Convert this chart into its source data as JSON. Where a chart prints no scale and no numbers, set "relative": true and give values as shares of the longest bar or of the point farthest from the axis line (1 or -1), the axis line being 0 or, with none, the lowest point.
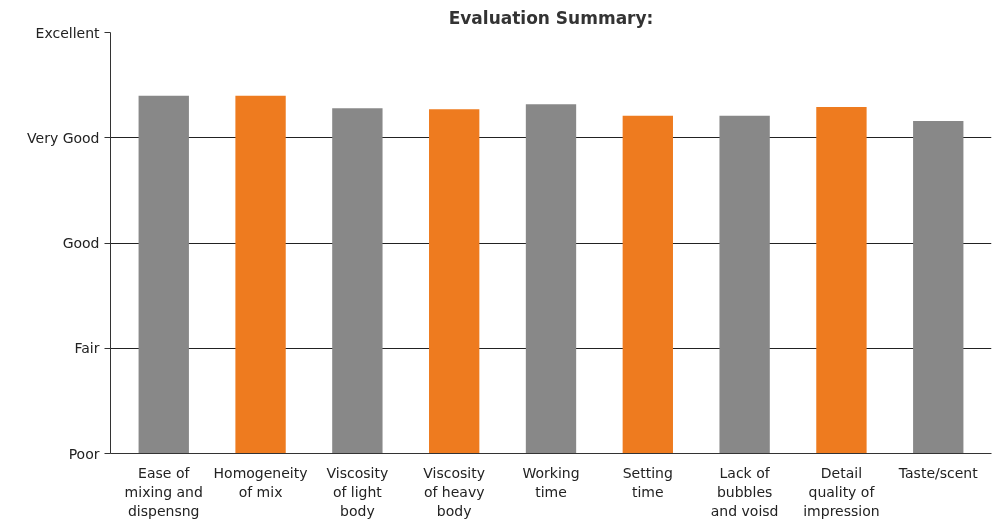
{
  "chart_data": {
    "type": "bar",
    "title": "Evaluation Summary:",
    "categories": [
      "Ease of mixing and dispensng",
      "Homogeneity of mix",
      "Viscosity of light body",
      "Viscosity of heavy body",
      "Working time",
      "Setting time",
      "Lack of bubbles and voisd",
      "Detail quality of impression",
      "Taste/scent"
    ],
    "values": [
      1,
      1,
      0.965,
      0.962,
      0.976,
      0.944,
      0.944,
      0.968,
      0.929
    ],
    "colors": [
      "#888888",
      "#ee7b1f",
      "#888888",
      "#ee7b1f",
      "#888888",
      "#ee7b1f",
      "#888888",
      "#ee7b1f",
      "#888888"
    ],
    "relative": true,
    "annotations": [
      "Poor",
      "Fair",
      "Good",
      "Very Good",
      "Excellent"
    ],
    "grid": "y"
  }
}
